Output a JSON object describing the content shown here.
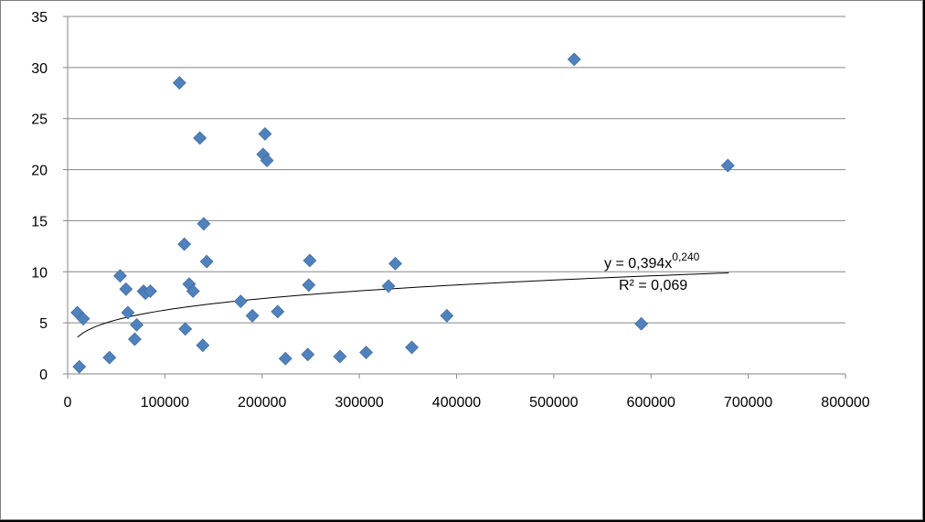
{
  "chart_data": {
    "type": "scatter",
    "title": "",
    "xlabel": "",
    "ylabel": "",
    "xlim": [
      0,
      800000
    ],
    "ylim": [
      0,
      35
    ],
    "x_ticks": [
      0,
      100000,
      200000,
      300000,
      400000,
      500000,
      600000,
      700000,
      800000
    ],
    "x_tick_labels": [
      "0",
      "100000",
      "200000",
      "300000",
      "400000",
      "500000",
      "600000",
      "700000",
      "800000"
    ],
    "y_ticks": [
      0,
      5,
      10,
      15,
      20,
      25,
      30,
      35
    ],
    "y_tick_labels": [
      "0",
      "5",
      "10",
      "15",
      "20",
      "25",
      "30",
      "35"
    ],
    "grid": "horizontal",
    "legend": "none",
    "marker": "diamond",
    "marker_color": "#4f81bd",
    "series": [
      {
        "x": [
          10000,
          12000,
          16000,
          43000,
          54000,
          60000,
          62000,
          69000,
          71000,
          78000,
          80000,
          85000,
          115000,
          120000,
          121000,
          125000,
          129000,
          136000,
          139000,
          140000,
          143000,
          178000,
          190000,
          201000,
          203000,
          205000,
          216000,
          224000,
          247000,
          248000,
          249000,
          280000,
          307000,
          330000,
          337000,
          354000,
          390000,
          521000,
          590000,
          679000
        ],
        "y": [
          6.0,
          0.7,
          5.4,
          1.6,
          9.6,
          8.3,
          6.0,
          3.4,
          4.8,
          8.1,
          7.9,
          8.1,
          28.5,
          12.7,
          4.4,
          8.8,
          8.1,
          23.1,
          2.8,
          14.7,
          11.0,
          7.1,
          5.7,
          21.5,
          23.5,
          20.9,
          6.1,
          1.5,
          1.9,
          8.7,
          11.1,
          1.7,
          2.1,
          8.6,
          10.8,
          2.6,
          5.7,
          30.8,
          4.9,
          20.4
        ]
      }
    ],
    "trendline": {
      "type": "power",
      "coefficient": 0.394,
      "exponent": 0.24,
      "x_range": [
        10000,
        680000
      ],
      "equation_prefix": "y = 0,394x",
      "equation_exponent": "0,240",
      "r2_label": "R² = 0,069"
    }
  }
}
